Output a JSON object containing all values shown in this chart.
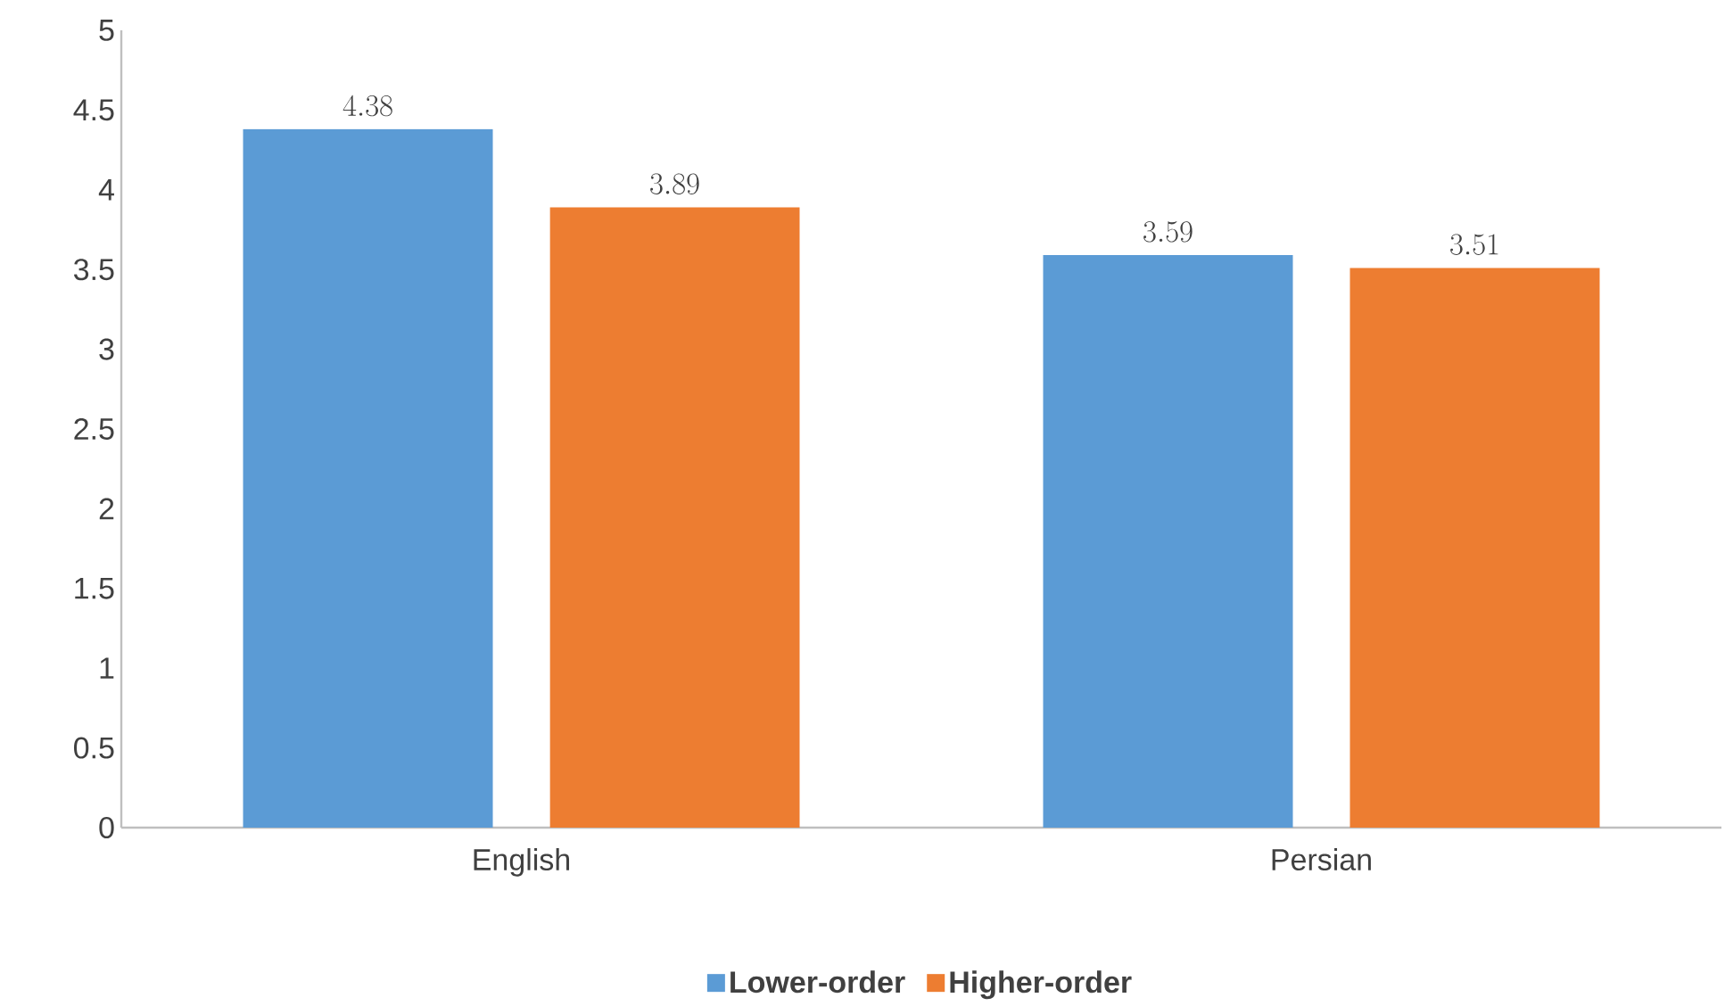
{
  "chart_data": {
    "type": "bar",
    "categories": [
      "English",
      "Persian"
    ],
    "series": [
      {
        "name": "Lower-order",
        "color": "#5b9bd5",
        "values": [
          4.38,
          3.59
        ]
      },
      {
        "name": "Higher-order",
        "color": "#ed7d31",
        "values": [
          3.89,
          3.51
        ]
      }
    ],
    "ylim": [
      0,
      5
    ],
    "yticks": [
      0,
      0.5,
      1,
      1.5,
      2,
      2.5,
      3,
      3.5,
      4,
      4.5,
      5
    ],
    "grid": false,
    "legend": "bottom",
    "data_labels": true
  }
}
